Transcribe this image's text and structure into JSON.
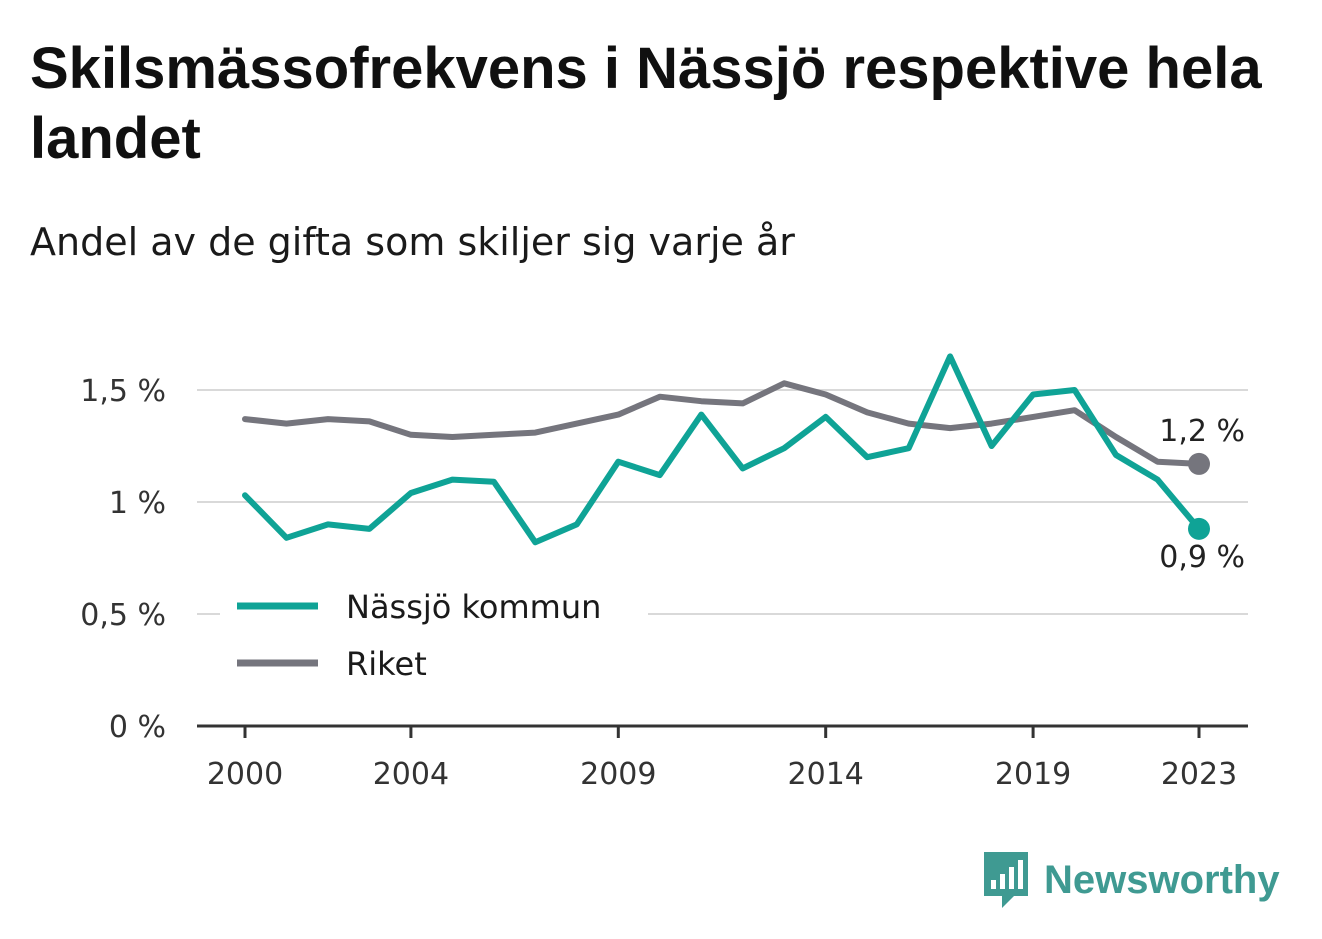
{
  "title": "Skilsmässofrekvens i Nässjö respektive hela landet",
  "subtitle": "Andel av de gifta som skiljer sig varje år",
  "brand": {
    "name": "Newsworthy",
    "color": "#3f9a92",
    "icon": "bar-chart-speech-bubble-icon"
  },
  "colors": {
    "nassjo": "#0fa396",
    "riket": "#75757d",
    "grid": "#d9d9d9",
    "axis": "#333333"
  },
  "chart_data": {
    "type": "line",
    "x": [
      2000,
      2001,
      2002,
      2003,
      2004,
      2005,
      2006,
      2007,
      2008,
      2009,
      2010,
      2011,
      2012,
      2013,
      2014,
      2015,
      2016,
      2017,
      2018,
      2019,
      2020,
      2021,
      2022,
      2023
    ],
    "x_ticks": [
      "2000",
      "2004",
      "2009",
      "2014",
      "2019",
      "2023"
    ],
    "x_tick_values": [
      2000,
      2004,
      2009,
      2014,
      2019,
      2023
    ],
    "y_ticks": [
      "0 %",
      "0,5 %",
      "1 %",
      "1,5 %"
    ],
    "y_tick_values": [
      0,
      0.5,
      1,
      1.5
    ],
    "ylim": [
      0,
      1.65
    ],
    "grid": true,
    "legend_position": "bottom-left",
    "series": [
      {
        "name": "Nässjö kommun",
        "color": "#0fa396",
        "values": [
          1.03,
          0.84,
          0.9,
          0.88,
          1.04,
          1.1,
          1.09,
          0.82,
          0.9,
          1.18,
          1.12,
          1.39,
          1.15,
          1.24,
          1.38,
          1.2,
          1.24,
          1.65,
          1.25,
          1.48,
          1.5,
          1.21,
          1.1,
          0.88
        ],
        "end_label": "0,9 %"
      },
      {
        "name": "Riket",
        "color": "#75757d",
        "values": [
          1.37,
          1.35,
          1.37,
          1.36,
          1.3,
          1.29,
          1.3,
          1.31,
          1.35,
          1.39,
          1.47,
          1.45,
          1.44,
          1.53,
          1.48,
          1.4,
          1.35,
          1.33,
          1.35,
          1.38,
          1.41,
          1.29,
          1.18,
          1.17
        ],
        "end_label": "1,2 %"
      }
    ]
  }
}
